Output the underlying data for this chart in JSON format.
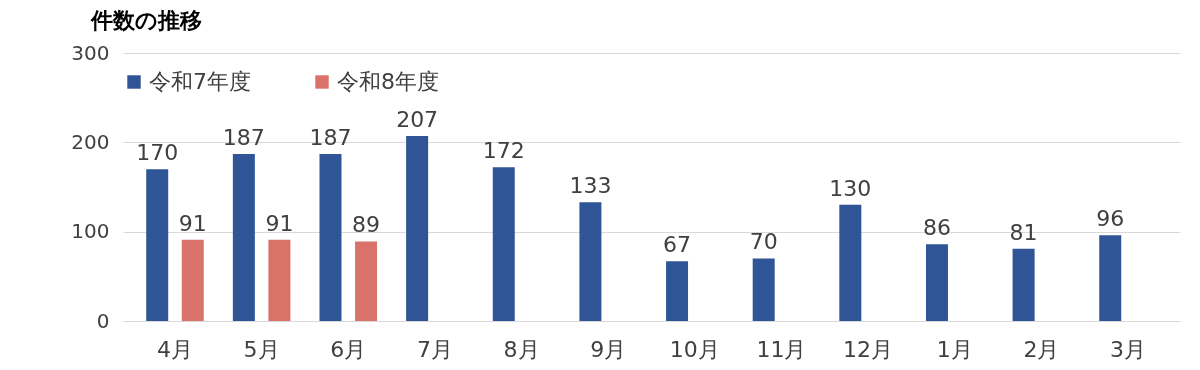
{
  "chart_data": {
    "type": "bar",
    "title": "件数の推移",
    "categories": [
      "4月",
      "5月",
      "6月",
      "7月",
      "8月",
      "9月",
      "10月",
      "11月",
      "12月",
      "1月",
      "2月",
      "3月"
    ],
    "series": [
      {
        "name": "令和7年度",
        "color": "#2f5597",
        "values": [
          170,
          187,
          187,
          207,
          172,
          133,
          67,
          70,
          130,
          86,
          81,
          96
        ]
      },
      {
        "name": "令和8年度",
        "color": "#d9736a",
        "values": [
          91,
          91,
          89,
          null,
          null,
          null,
          null,
          null,
          null,
          null,
          null,
          null
        ]
      }
    ],
    "ylim": [
      0,
      300
    ],
    "yticks": [
      0,
      100,
      200,
      300
    ],
    "grid": "y",
    "legend": "top",
    "data_labels": true
  }
}
